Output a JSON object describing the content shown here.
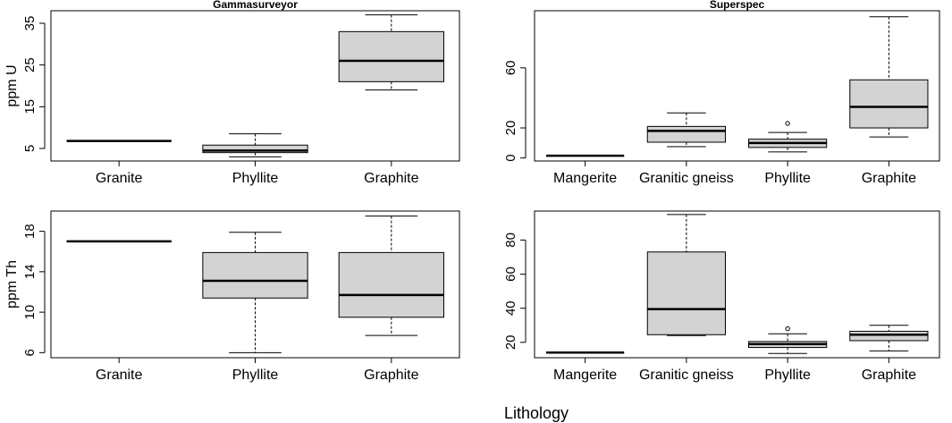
{
  "figure": {
    "xlabel": "Lithology"
  },
  "chart_data": [
    {
      "type": "box",
      "title": "Gammasurveyor",
      "xlabel": "",
      "ylabel": "ppm U",
      "ylim": [
        2,
        38
      ],
      "yticks": [
        5,
        15,
        25,
        35
      ],
      "categories": [
        "Granite",
        "Phyllite",
        "Graphite"
      ],
      "boxes": [
        {
          "whisker_low": 6.8,
          "q1": 6.8,
          "median": 6.8,
          "q3": 6.8,
          "whisker_high": 6.8,
          "outliers": []
        },
        {
          "whisker_low": 3.0,
          "q1": 4.0,
          "median": 4.5,
          "q3": 5.8,
          "whisker_high": 8.5,
          "outliers": []
        },
        {
          "whisker_low": 19.0,
          "q1": 21.0,
          "median": 26.0,
          "q3": 33.0,
          "whisker_high": 37.0,
          "outliers": []
        }
      ]
    },
    {
      "type": "box",
      "title": "Superspec",
      "xlabel": "",
      "ylabel": "",
      "ylim": [
        -2,
        98
      ],
      "yticks": [
        0,
        20,
        60
      ],
      "categories": [
        "Mangerite",
        "Granitic gneiss",
        "Phyllite",
        "Graphite"
      ],
      "boxes": [
        {
          "whisker_low": 1.5,
          "q1": 1.5,
          "median": 1.5,
          "q3": 1.5,
          "whisker_high": 1.5,
          "outliers": []
        },
        {
          "whisker_low": 7.5,
          "q1": 10.5,
          "median": 18.0,
          "q3": 21.0,
          "whisker_high": 30.0,
          "outliers": []
        },
        {
          "whisker_low": 4.0,
          "q1": 7.0,
          "median": 10.0,
          "q3": 12.5,
          "whisker_high": 17.0,
          "outliers": [
            23
          ]
        },
        {
          "whisker_low": 14.0,
          "q1": 20.0,
          "median": 34.0,
          "q3": 52.0,
          "whisker_high": 94.0,
          "outliers": []
        }
      ]
    },
    {
      "type": "box",
      "title": "",
      "xlabel": "",
      "ylabel": "ppm Th",
      "ylim": [
        5.5,
        20
      ],
      "yticks": [
        6,
        10,
        14,
        18
      ],
      "categories": [
        "Granite",
        "Phyllite",
        "Graphite"
      ],
      "boxes": [
        {
          "whisker_low": 17.0,
          "q1": 17.0,
          "median": 17.0,
          "q3": 17.0,
          "whisker_high": 17.0,
          "outliers": []
        },
        {
          "whisker_low": 6.0,
          "q1": 11.4,
          "median": 13.1,
          "q3": 15.9,
          "whisker_high": 17.9,
          "outliers": []
        },
        {
          "whisker_low": 7.7,
          "q1": 9.5,
          "median": 11.7,
          "q3": 15.9,
          "whisker_high": 19.5,
          "outliers": []
        }
      ]
    },
    {
      "type": "box",
      "title": "",
      "xlabel": "",
      "ylabel": "",
      "ylim": [
        11,
        97
      ],
      "yticks": [
        20,
        40,
        60,
        80
      ],
      "categories": [
        "Mangerite",
        "Granitic gneiss",
        "Phyllite",
        "Graphite"
      ],
      "boxes": [
        {
          "whisker_low": 14.0,
          "q1": 14.0,
          "median": 14.0,
          "q3": 14.0,
          "whisker_high": 14.0,
          "outliers": []
        },
        {
          "whisker_low": 24.0,
          "q1": 24.5,
          "median": 39.5,
          "q3": 73.0,
          "whisker_high": 95.0,
          "outliers": []
        },
        {
          "whisker_low": 13.5,
          "q1": 17.0,
          "median": 19.0,
          "q3": 20.5,
          "whisker_high": 25.0,
          "outliers": [
            28
          ]
        },
        {
          "whisker_low": 15.0,
          "q1": 21.0,
          "median": 24.5,
          "q3": 26.5,
          "whisker_high": 30.0,
          "outliers": []
        }
      ]
    }
  ],
  "colors": {
    "box_fill": "#d3d3d3",
    "stroke": "#000000"
  }
}
